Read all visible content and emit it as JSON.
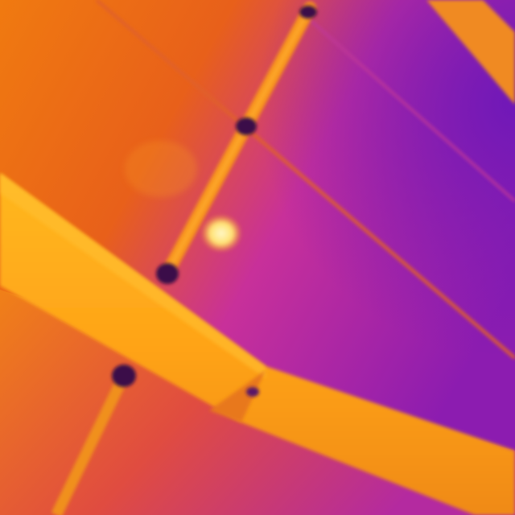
{
  "image": {
    "kind": "thermal-infrared-photo",
    "palette": {
      "hot": "#fff3a0",
      "warm_light": "#ffb020",
      "warm": "#f07a10",
      "mid": "#e0501c",
      "cool": "#c0208c",
      "cold": "#8c1cb0",
      "coldest": "#3a0a48"
    },
    "features": [
      "wooden-beam",
      "vertical-pipe",
      "pipe-clamp",
      "hot-spot",
      "ceiling-panel-seam"
    ]
  }
}
